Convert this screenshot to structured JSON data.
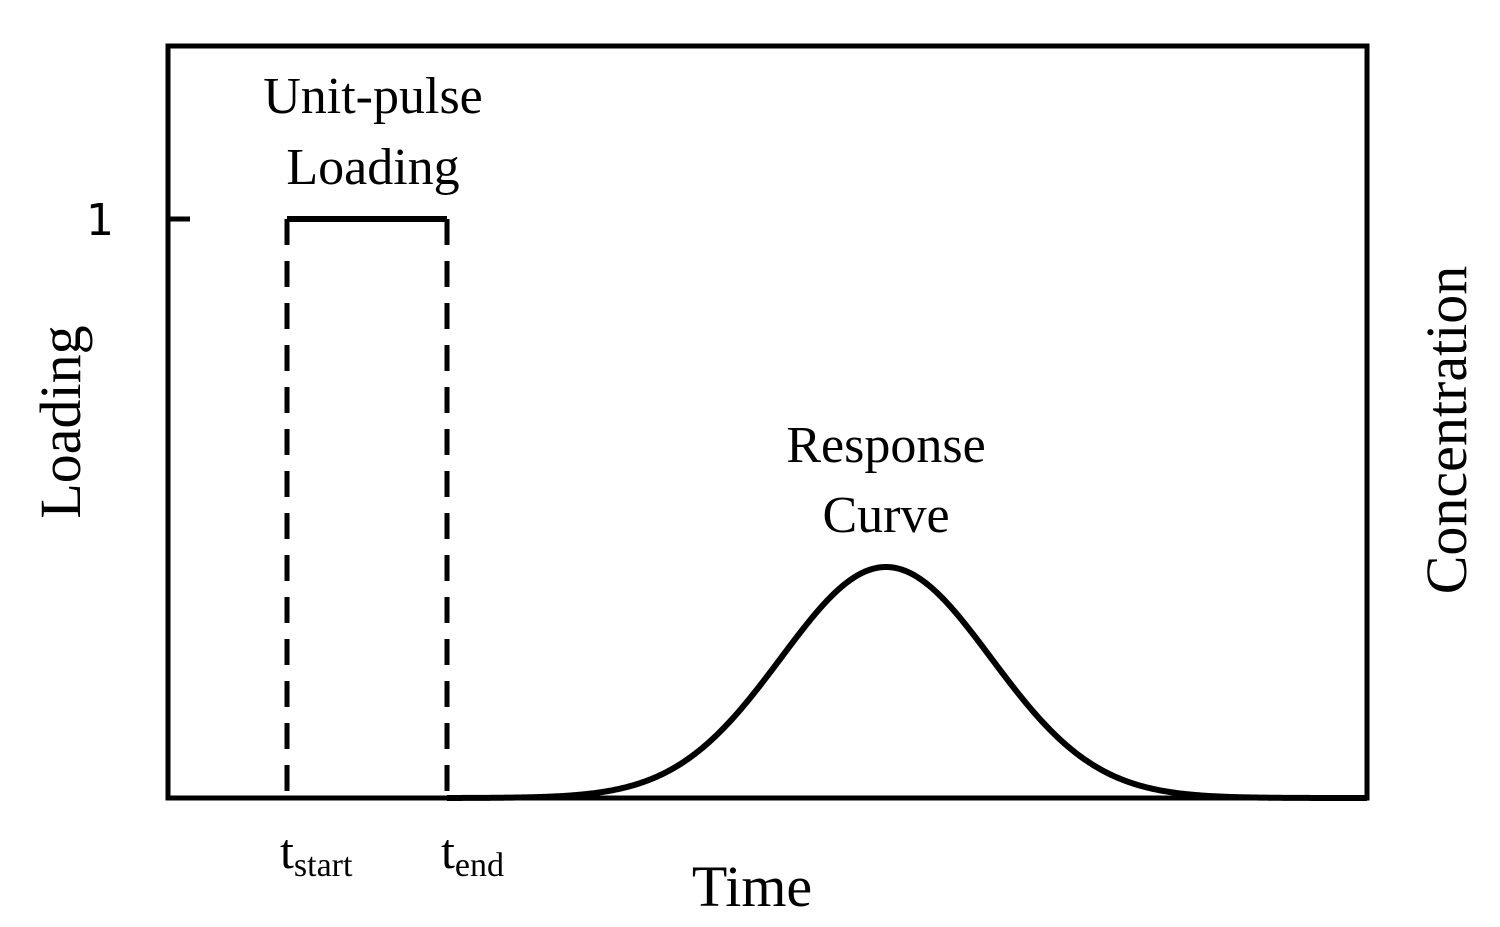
{
  "labels": {
    "y_axis_left": "Loading",
    "y_axis_right": "Concentration",
    "x_axis": "Time",
    "y_tick_one": "1",
    "pulse_line1": "Unit-pulse",
    "pulse_line2": "Loading",
    "response_line1": "Response",
    "response_line2": "Curve",
    "t_start_base": "t",
    "t_start_sub": "start",
    "t_end_base": "t",
    "t_end_sub": "end"
  },
  "colors": {
    "stroke": "#000000",
    "background": "#ffffff"
  }
}
